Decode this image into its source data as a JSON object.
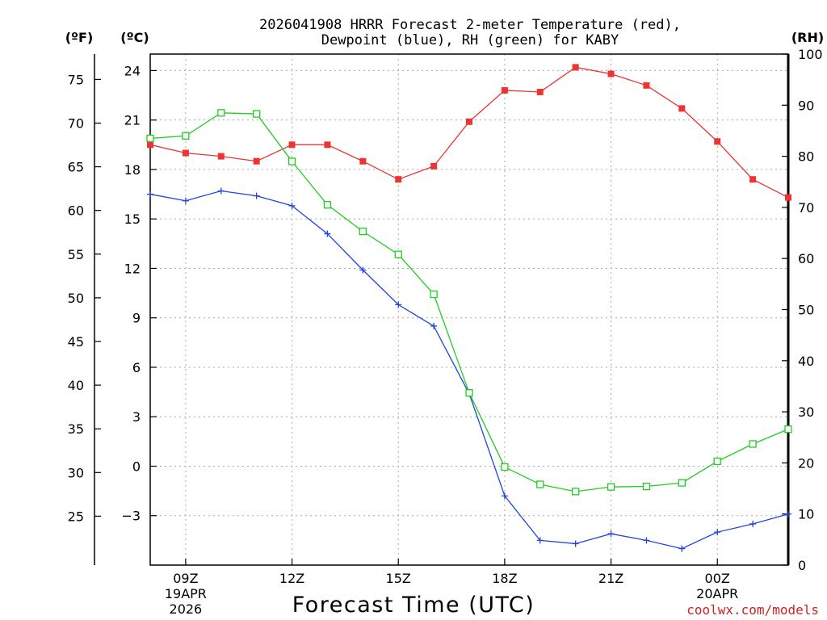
{
  "chart_data": {
    "type": "line",
    "title_line1": "2026041908 HRRR Forecast 2-meter Temperature (red),",
    "title_line2": "Dewpoint (blue), RH (green) for KABY",
    "xlabel": "Forecast Time (UTC)",
    "credit": "coolwx.com/models",
    "axes": {
      "left_f": {
        "label": "(ºF)",
        "ticks": [
          25,
          30,
          35,
          40,
          45,
          50,
          55,
          60,
          65,
          70,
          75
        ],
        "range": [
          19.4,
          77.9
        ]
      },
      "left_c": {
        "label": "(ºC)",
        "ticks": [
          "24",
          "21",
          "18",
          "15",
          "12",
          "9",
          "6",
          "3",
          "0",
          "−3"
        ],
        "tick_values": [
          24,
          21,
          18,
          15,
          12,
          9,
          6,
          3,
          0,
          -3
        ],
        "range": [
          -6,
          25
        ]
      },
      "right_rh": {
        "label": "(RH)",
        "ticks": [
          0,
          10,
          20,
          30,
          40,
          50,
          60,
          70,
          80,
          90,
          100
        ],
        "range": [
          0,
          100
        ]
      }
    },
    "x": [
      8,
      9,
      10,
      11,
      12,
      13,
      14,
      15,
      16,
      17,
      18,
      19,
      20,
      21,
      22,
      23,
      24,
      25,
      26
    ],
    "x_range": [
      8,
      26
    ],
    "x_ticks": [
      {
        "x": 9,
        "label": "09Z",
        "sub1": "19APR",
        "sub2": "2026"
      },
      {
        "x": 12,
        "label": "12Z",
        "sub1": "",
        "sub2": ""
      },
      {
        "x": 15,
        "label": "15Z",
        "sub1": "",
        "sub2": ""
      },
      {
        "x": 18,
        "label": "18Z",
        "sub1": "",
        "sub2": ""
      },
      {
        "x": 21,
        "label": "21Z",
        "sub1": "",
        "sub2": ""
      },
      {
        "x": 24,
        "label": "00Z",
        "sub1": "20APR",
        "sub2": ""
      }
    ],
    "series": [
      {
        "name": "2-meter Temperature",
        "axis": "left_c",
        "color": "#ee3333",
        "marker": "filled-square",
        "values": [
          19.5,
          19.0,
          18.8,
          18.5,
          19.5,
          19.5,
          18.5,
          17.4,
          18.2,
          20.9,
          22.8,
          22.7,
          24.2,
          23.8,
          23.1,
          21.7,
          19.7,
          17.4,
          16.3
        ]
      },
      {
        "name": "Dewpoint",
        "axis": "left_c",
        "color": "#2244dd",
        "marker": "plus",
        "values": [
          16.5,
          16.1,
          16.7,
          16.4,
          15.8,
          14.1,
          11.9,
          9.8,
          8.5,
          4.4,
          -1.8,
          -4.5,
          -4.7,
          -4.1,
          -4.5,
          -5.0,
          -4.0,
          -3.5,
          -2.9
        ]
      },
      {
        "name": "RH",
        "axis": "right_rh",
        "color": "#22cc22",
        "marker": "open-square",
        "values": [
          83.5,
          84,
          88.5,
          88.3,
          79,
          70.5,
          65.3,
          60.8,
          53,
          33.7,
          19.2,
          15.8,
          14.4,
          15.3,
          15.4,
          16.1,
          20.3,
          23.7,
          26.6
        ]
      }
    ]
  }
}
